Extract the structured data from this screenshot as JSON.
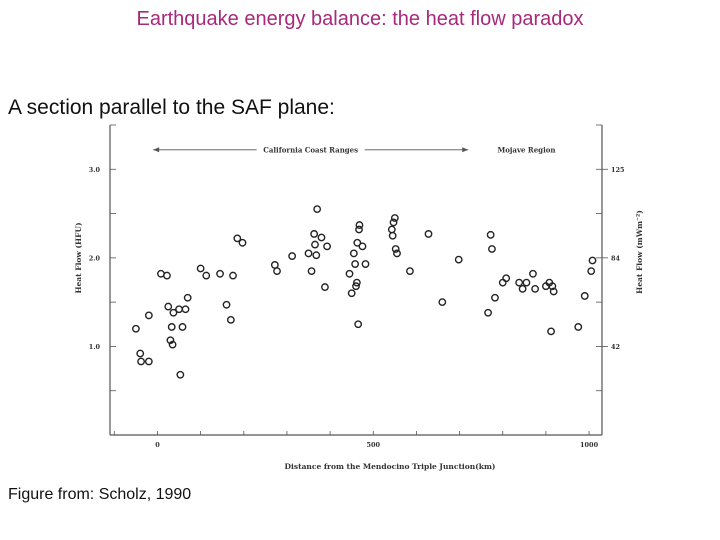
{
  "page": {
    "title": "Earthquake energy balance: the heat flow paradox",
    "subtitle": "A section parallel to the SAF plane:",
    "caption": "Figure from: Scholz, 1990"
  },
  "chart_data": {
    "type": "scatter",
    "xlabel": "Distance from the Mendocino Triple Junction(km)",
    "ylabel": "Heat Flow (HFU)",
    "ylabel_right": "Heat Flow (mWm⁻²)",
    "xlim": [
      -110,
      1030
    ],
    "ylim": [
      0.0,
      3.5
    ],
    "x_ticks": [
      0,
      500,
      1000
    ],
    "x_tick_labels": [
      "0",
      "500",
      "1000"
    ],
    "y_ticks": [
      1.0,
      2.0,
      3.0
    ],
    "y_tick_labels": [
      "1.0",
      "2.0",
      "3.0"
    ],
    "y_right_ticks": [
      1.0,
      2.0,
      3.0
    ],
    "y_right_tick_labels": [
      "42",
      "84",
      "125"
    ],
    "grid": false,
    "annotations": [
      {
        "text": "California Coast Ranges",
        "x_start": -10,
        "x_end": 720,
        "y": 3.22
      },
      {
        "text": "Mojave Region",
        "x": 855,
        "y": 3.22
      }
    ],
    "series": [
      {
        "points": [
          [
            -50,
            1.2
          ],
          [
            -40,
            0.92
          ],
          [
            -38,
            0.83
          ],
          [
            -20,
            1.35
          ],
          [
            -20,
            0.83
          ],
          [
            8,
            1.82
          ],
          [
            22,
            1.8
          ],
          [
            25,
            1.45
          ],
          [
            30,
            1.07
          ],
          [
            33,
            1.22
          ],
          [
            35,
            1.02
          ],
          [
            37,
            1.38
          ],
          [
            50,
            1.42
          ],
          [
            53,
            0.68
          ],
          [
            58,
            1.22
          ],
          [
            65,
            1.42
          ],
          [
            70,
            1.55
          ],
          [
            100,
            1.88
          ],
          [
            113,
            1.8
          ],
          [
            145,
            1.82
          ],
          [
            160,
            1.47
          ],
          [
            170,
            1.3
          ],
          [
            175,
            1.8
          ],
          [
            185,
            2.22
          ],
          [
            197,
            2.17
          ],
          [
            272,
            1.92
          ],
          [
            277,
            1.85
          ],
          [
            312,
            2.02
          ],
          [
            350,
            2.05
          ],
          [
            357,
            1.85
          ],
          [
            363,
            2.27
          ],
          [
            365,
            2.15
          ],
          [
            368,
            2.03
          ],
          [
            370,
            2.55
          ],
          [
            380,
            2.23
          ],
          [
            388,
            1.67
          ],
          [
            393,
            2.13
          ],
          [
            445,
            1.82
          ],
          [
            450,
            1.6
          ],
          [
            455,
            2.05
          ],
          [
            458,
            1.93
          ],
          [
            460,
            1.68
          ],
          [
            462,
            1.72
          ],
          [
            463,
            2.17
          ],
          [
            465,
            1.25
          ],
          [
            467,
            2.32
          ],
          [
            468,
            2.37
          ],
          [
            475,
            2.13
          ],
          [
            482,
            1.93
          ],
          [
            543,
            2.32
          ],
          [
            545,
            2.25
          ],
          [
            547,
            2.4
          ],
          [
            550,
            2.45
          ],
          [
            552,
            2.1
          ],
          [
            555,
            2.05
          ],
          [
            585,
            1.85
          ],
          [
            628,
            2.27
          ],
          [
            660,
            1.5
          ],
          [
            698,
            1.98
          ],
          [
            766,
            1.38
          ],
          [
            772,
            2.26
          ],
          [
            775,
            2.1
          ],
          [
            782,
            1.55
          ],
          [
            800,
            1.72
          ],
          [
            808,
            1.77
          ],
          [
            838,
            1.72
          ],
          [
            846,
            1.65
          ],
          [
            855,
            1.72
          ],
          [
            870,
            1.82
          ],
          [
            875,
            1.65
          ],
          [
            900,
            1.68
          ],
          [
            908,
            1.72
          ],
          [
            912,
            1.17
          ],
          [
            915,
            1.68
          ],
          [
            918,
            1.62
          ],
          [
            975,
            1.22
          ],
          [
            990,
            1.57
          ],
          [
            1005,
            1.85
          ],
          [
            1008,
            1.97
          ]
        ]
      }
    ]
  }
}
